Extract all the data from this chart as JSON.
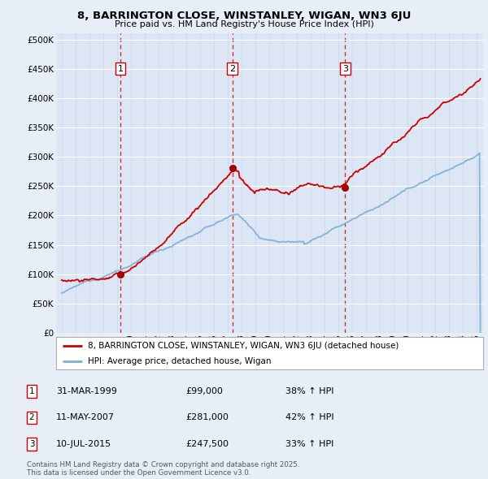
{
  "title": "8, BARRINGTON CLOSE, WINSTANLEY, WIGAN, WN3 6JU",
  "subtitle": "Price paid vs. HM Land Registry's House Price Index (HPI)",
  "background_color": "#e8eef7",
  "plot_bg_color": "#dce6f4",
  "transaction_dates": [
    1999.24,
    2007.36,
    2015.52
  ],
  "transaction_labels": [
    "1",
    "2",
    "3"
  ],
  "transaction_prices": [
    99000,
    281000,
    247500
  ],
  "legend_entries": [
    "8, BARRINGTON CLOSE, WINSTANLEY, WIGAN, WN3 6JU (detached house)",
    "HPI: Average price, detached house, Wigan"
  ],
  "table_rows": [
    {
      "num": "1",
      "date": "31-MAR-1999",
      "price": "£99,000",
      "change": "38% ↑ HPI"
    },
    {
      "num": "2",
      "date": "11-MAY-2007",
      "price": "£281,000",
      "change": "42% ↑ HPI"
    },
    {
      "num": "3",
      "date": "10-JUL-2015",
      "price": "£247,500",
      "change": "33% ↑ HPI"
    }
  ],
  "footer": "Contains HM Land Registry data © Crown copyright and database right 2025.\nThis data is licensed under the Open Government Licence v3.0.",
  "red_line_color": "#cc0000",
  "blue_line_color": "#7bafd4",
  "dashed_line_color": "#cc0000",
  "yticks": [
    0,
    50000,
    100000,
    150000,
    200000,
    250000,
    300000,
    350000,
    400000,
    450000,
    500000
  ],
  "xlim_start": 1994.6,
  "xlim_end": 2025.5
}
